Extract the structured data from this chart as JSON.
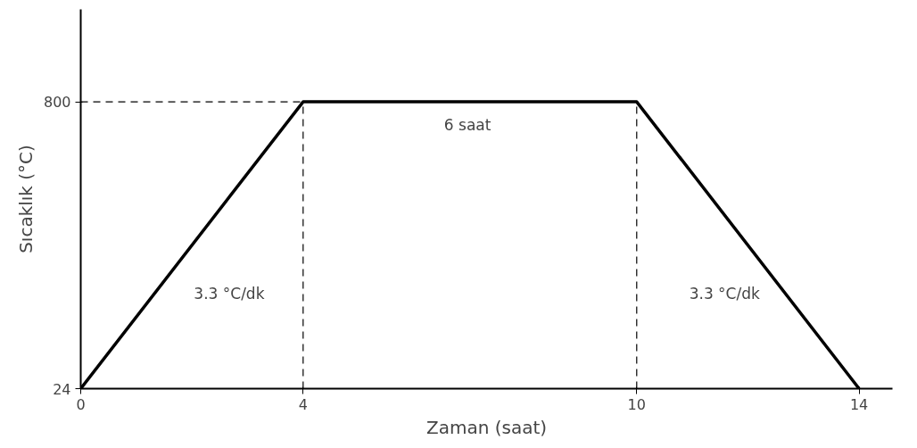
{
  "chart_data": {
    "type": "line",
    "xlabel": "Zaman (saat)",
    "ylabel": "Sıcaklık (°C)",
    "x": [
      0,
      4,
      10,
      14
    ],
    "series": [
      {
        "color": "#000000",
        "values": [
          24,
          800,
          800,
          24
        ]
      }
    ],
    "xlim": [
      0,
      14.6
    ],
    "ylim": [
      24,
      1050
    ],
    "xticks": [
      0,
      4,
      10,
      14
    ],
    "yticks": [
      24,
      800
    ],
    "grid": false,
    "marker": "none",
    "line_style": "solid",
    "ref_lines": [
      {
        "axis": "y",
        "value": 800,
        "line_style": "dashed",
        "color": "#000000"
      },
      {
        "axis": "x",
        "value": 4,
        "line_style": "dashed",
        "color": "#000000"
      },
      {
        "axis": "x",
        "value": 10,
        "line_style": "dashed",
        "color": "#000000"
      }
    ],
    "annotations": [
      "3.3 °C/dk",
      "6  saat",
      "3.3 °C/dk"
    ]
  }
}
